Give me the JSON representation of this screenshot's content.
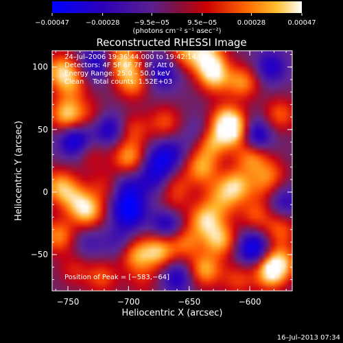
{
  "chart_data": {
    "type": "heatmap",
    "title": "Reconstructed RHESSI Image",
    "xlabel": "Heliocentric X (arcsec)",
    "ylabel": "Heliocentric Y (arcsec)",
    "xlim": [
      -763,
      -565
    ],
    "ylim": [
      -79,
      113
    ],
    "x_ticks": [
      -750,
      -700,
      -650,
      -600
    ],
    "x_tick_labels": [
      "−750",
      "−700",
      "−650",
      "−600"
    ],
    "y_ticks": [
      -50,
      0,
      50,
      100
    ],
    "y_tick_labels": [
      "−50",
      "0",
      "50",
      "100"
    ],
    "colorbar": {
      "range": [
        -0.00047,
        0.00047
      ],
      "tick_values": [
        -0.00047,
        -0.00028,
        -9.5e-05,
        9.5e-05,
        0.00028,
        0.00047
      ],
      "tick_labels": [
        "−0.00047",
        "−0.00028",
        "−9.5e−05",
        "9.5e−05",
        "0.00028",
        "0.00047"
      ],
      "unit_label": "(photons cm⁻² s⁻¹ asec⁻²)"
    },
    "annotations": {
      "time": "24–Jul–2006 19:36:44.000 to 19:42:14.000",
      "detectors": "Detectors: 4F 5F 6F 7F 8F, Att 0",
      "energy": "Energy Range: 25.0 – 50.0 keV",
      "clean": "Clean    Total counts: 1.52E+03",
      "peak": "Position of Peak = [−583,−64]"
    },
    "peak_position": [
      -583,
      -64
    ],
    "blobs": [
      {
        "x": -755,
        "y": 97,
        "v": 0.85
      },
      {
        "x": -747,
        "y": 85,
        "v": 0.5
      },
      {
        "x": -726,
        "y": 103,
        "v": -0.6
      },
      {
        "x": -705,
        "y": 105,
        "v": 0.9
      },
      {
        "x": -697,
        "y": 88,
        "v": 0.7
      },
      {
        "x": -672,
        "y": 95,
        "v": -0.55
      },
      {
        "x": -652,
        "y": 113,
        "v": 0.75
      },
      {
        "x": -634,
        "y": 106,
        "v": 0.95
      },
      {
        "x": -629,
        "y": 92,
        "v": 0.8
      },
      {
        "x": -606,
        "y": 88,
        "v": 0.7
      },
      {
        "x": -583,
        "y": 100,
        "v": -0.55
      },
      {
        "x": -751,
        "y": 62,
        "v": 0.9
      },
      {
        "x": -732,
        "y": 63,
        "v": 0.3
      },
      {
        "x": -744,
        "y": 41,
        "v": -0.8
      },
      {
        "x": -716,
        "y": 50,
        "v": -0.6
      },
      {
        "x": -696,
        "y": 50,
        "v": 0.45
      },
      {
        "x": -670,
        "y": 56,
        "v": 0.5
      },
      {
        "x": -640,
        "y": 46,
        "v": -0.4
      },
      {
        "x": -619,
        "y": 57,
        "v": 0.9
      },
      {
        "x": -612,
        "y": 48,
        "v": 0.85
      },
      {
        "x": -596,
        "y": 45,
        "v": -0.8
      },
      {
        "x": -575,
        "y": 62,
        "v": 0.55
      },
      {
        "x": -732,
        "y": 31,
        "v": 0.35
      },
      {
        "x": -700,
        "y": 28,
        "v": 0.75
      },
      {
        "x": -675,
        "y": 23,
        "v": -0.55
      },
      {
        "x": -665,
        "y": 32,
        "v": -0.4
      },
      {
        "x": -632,
        "y": 40,
        "v": 0.85
      },
      {
        "x": -640,
        "y": 20,
        "v": 0.75
      },
      {
        "x": -599,
        "y": 28,
        "v": 0.7
      },
      {
        "x": -583,
        "y": 15,
        "v": 0.45
      },
      {
        "x": -757,
        "y": 5,
        "v": 0.75
      },
      {
        "x": -745,
        "y": -5,
        "v": 0.55
      },
      {
        "x": -720,
        "y": 5,
        "v": 0.35
      },
      {
        "x": -700,
        "y": 3,
        "v": -0.5
      },
      {
        "x": -680,
        "y": 10,
        "v": -0.35
      },
      {
        "x": -660,
        "y": 5,
        "v": 0.4
      },
      {
        "x": -628,
        "y": 0,
        "v": 0.3
      },
      {
        "x": -612,
        "y": 5,
        "v": 0.85
      },
      {
        "x": -590,
        "y": 5,
        "v": 0.35
      },
      {
        "x": -734,
        "y": -15,
        "v": 0.9
      },
      {
        "x": -700,
        "y": -15,
        "v": -0.9
      },
      {
        "x": -663,
        "y": -12,
        "v": 0.3
      },
      {
        "x": -668,
        "y": -25,
        "v": -0.65
      },
      {
        "x": -637,
        "y": -22,
        "v": 0.85
      },
      {
        "x": -622,
        "y": -10,
        "v": 0.4
      },
      {
        "x": -595,
        "y": -18,
        "v": 0.5
      },
      {
        "x": -572,
        "y": -8,
        "v": -0.45
      },
      {
        "x": -758,
        "y": -35,
        "v": 0.7
      },
      {
        "x": -733,
        "y": -40,
        "v": -0.3
      },
      {
        "x": -707,
        "y": -40,
        "v": -0.35
      },
      {
        "x": -694,
        "y": -50,
        "v": 0.75
      },
      {
        "x": -675,
        "y": -47,
        "v": 0.85
      },
      {
        "x": -653,
        "y": -40,
        "v": 0.6
      },
      {
        "x": -625,
        "y": -38,
        "v": 0.85
      },
      {
        "x": -597,
        "y": -45,
        "v": -0.85
      },
      {
        "x": -575,
        "y": -30,
        "v": 0.55
      },
      {
        "x": -745,
        "y": -62,
        "v": 0.35
      },
      {
        "x": -722,
        "y": -68,
        "v": 0.5
      },
      {
        "x": -688,
        "y": -70,
        "v": 0.3
      },
      {
        "x": -660,
        "y": -68,
        "v": -0.55
      },
      {
        "x": -637,
        "y": -62,
        "v": 0.8
      },
      {
        "x": -610,
        "y": -70,
        "v": 0.45
      },
      {
        "x": -583,
        "y": -64,
        "v": 1.0
      },
      {
        "x": -575,
        "y": -55,
        "v": 0.7
      }
    ],
    "background_level": -0.1
  },
  "footer": {
    "timestamp": "16–Jul–2013 07:34"
  }
}
